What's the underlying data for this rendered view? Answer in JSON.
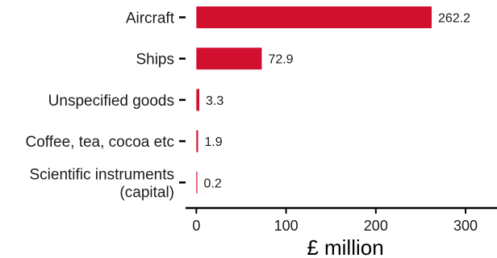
{
  "chart_data": {
    "type": "bar",
    "orientation": "horizontal",
    "categories": [
      [
        "Aircraft"
      ],
      [
        "Ships"
      ],
      [
        "Unspecified goods"
      ],
      [
        "Coffee, tea, cocoa etc"
      ],
      [
        "Scientific instruments",
        "(capital)"
      ]
    ],
    "values": [
      262.2,
      72.9,
      3.3,
      1.9,
      0.2
    ],
    "value_labels": [
      "262.2",
      "72.9",
      "3.3",
      "1.9",
      "0.2"
    ],
    "xlabel": "£ million",
    "xticks": [
      0,
      100,
      200,
      300
    ],
    "xlim": [
      -12,
      335
    ],
    "bar_color": "#d0102e",
    "grid": false,
    "legend": "none"
  }
}
